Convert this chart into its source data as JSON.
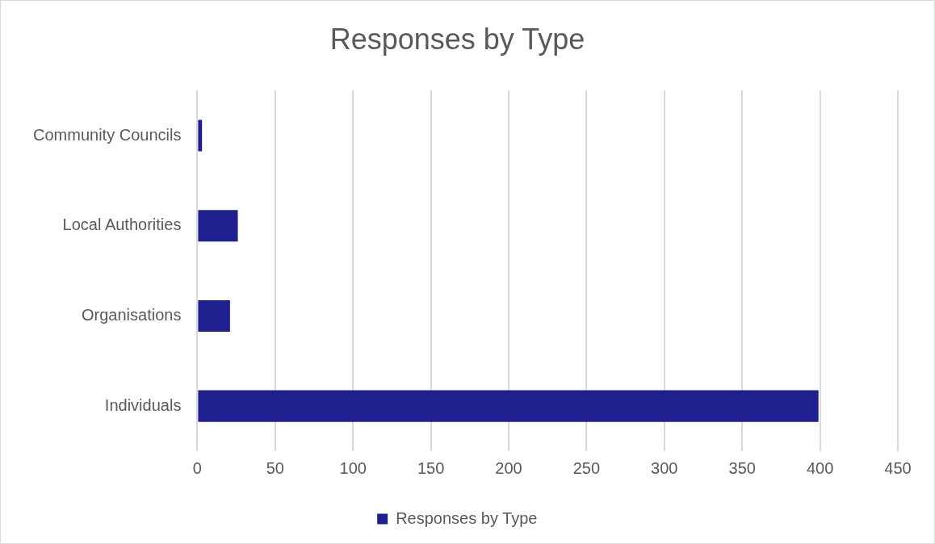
{
  "chart_data": {
    "type": "bar",
    "orientation": "horizontal",
    "title": "Responses by Type",
    "categories": [
      "Community Councils",
      "Local Authorities",
      "Organisations",
      "Individuals"
    ],
    "series": [
      {
        "name": "Responses by Type",
        "color": "#1f1f8f",
        "values": [
          3,
          26,
          21,
          399
        ]
      }
    ],
    "xlim": [
      0,
      450
    ],
    "xticks": [
      0,
      50,
      100,
      150,
      200,
      250,
      300,
      350,
      400,
      450
    ],
    "grid": "x",
    "legend": "bottom"
  }
}
